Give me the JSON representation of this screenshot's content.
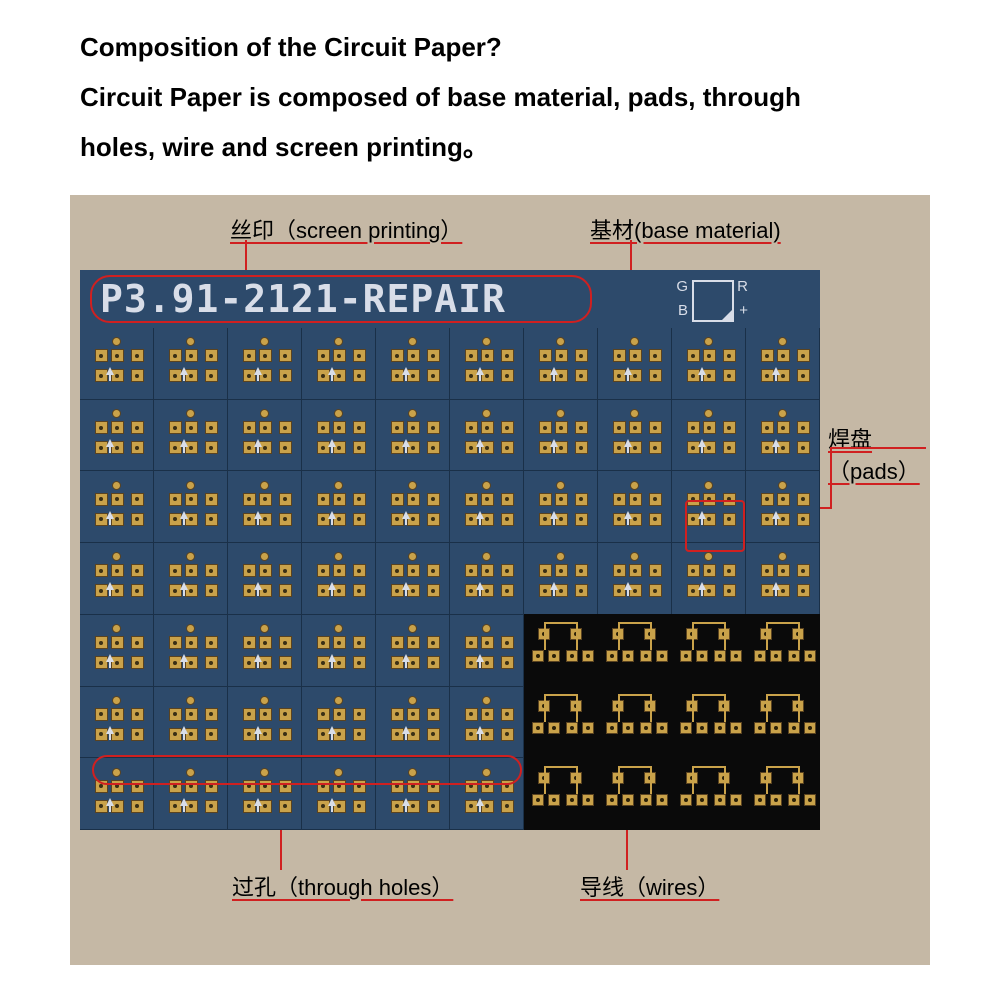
{
  "heading": {
    "line1": "Composition of the Circuit Paper?",
    "line2": "Circuit Paper is composed of base material, pads, through",
    "line3": "holes, wire and screen printing。"
  },
  "pcb": {
    "title": "P3.91-2121-REPAIR",
    "marker": {
      "G": "G",
      "R": "R",
      "B": "B",
      "plus": "+"
    },
    "grid_rows": 7,
    "grid_cols": 10,
    "pad_color": "#c9a24a",
    "pad_border": "#5a4320",
    "base_color": "#2d4a6b",
    "black_color": "#0a0a0a",
    "silkscreen_color": "#d8dde8"
  },
  "annotations": {
    "screen_printing": "丝印（screen printing）",
    "base_material": "基材(base material)",
    "pads": "焊盘（pads）",
    "through_holes": "过孔（through holes）",
    "wires": "导线（wires）"
  },
  "colors": {
    "callout": "#d02020",
    "bg_frame": "#c5b8a5",
    "text": "#000000"
  }
}
